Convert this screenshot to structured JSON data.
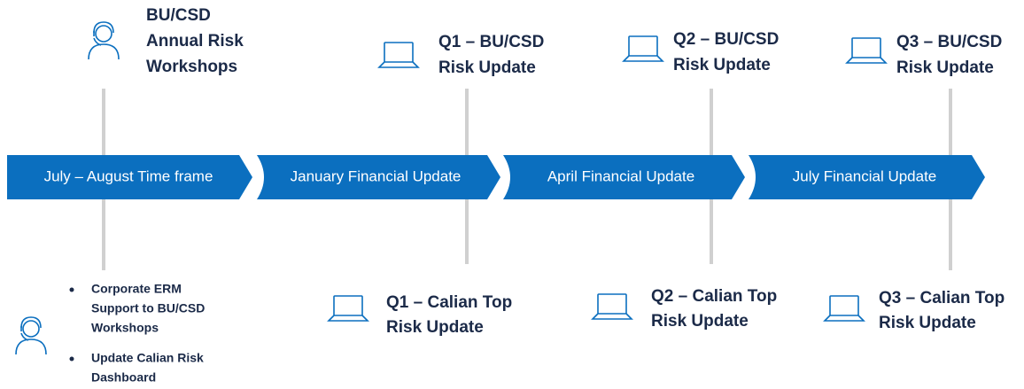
{
  "phases": [
    "July – August Time frame",
    "January Financial Update",
    "April Financial Update",
    "July Financial Update"
  ],
  "top": [
    {
      "lines": [
        "BU/CSD",
        "Annual Risk",
        "Workshops"
      ]
    },
    {
      "lines": [
        "Q1 – BU/CSD",
        "Risk Update"
      ]
    },
    {
      "lines": [
        "Q2 – BU/CSD",
        "Risk Update"
      ]
    },
    {
      "lines": [
        "Q3 – BU/CSD",
        "Risk Update"
      ]
    }
  ],
  "bottom": [
    {
      "bullets": [
        [
          "Corporate ERM",
          "Support to BU/CSD",
          "Workshops"
        ],
        [
          "Update Calian Risk",
          "Dashboard"
        ]
      ]
    },
    {
      "lines": [
        "Q1 – Calian Top",
        "Risk Update"
      ]
    },
    {
      "lines": [
        "Q2 – Calian Top",
        "Risk Update"
      ]
    },
    {
      "lines": [
        "Q3 – Calian Top",
        "Risk Update"
      ]
    }
  ]
}
